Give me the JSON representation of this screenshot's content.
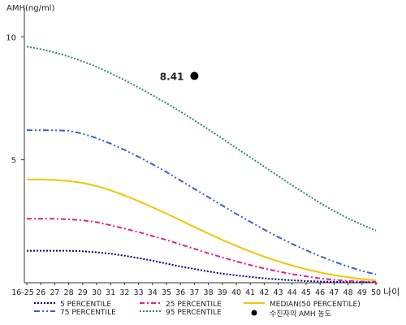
{
  "chart_data": {
    "type": "line",
    "ylabel": "AMH(ng/ml)",
    "xlabel": "나이",
    "ylim": [
      0,
      11
    ],
    "yticks": [
      5,
      10
    ],
    "x": [
      "16-25",
      "26",
      "27",
      "28",
      "29",
      "30",
      "31",
      "32",
      "33",
      "34",
      "35",
      "36",
      "37",
      "38",
      "39",
      "40",
      "41",
      "42",
      "43",
      "44",
      "45",
      "46",
      "47",
      "48",
      "49",
      "50"
    ],
    "series": [
      {
        "name": "5 PERCENTILE",
        "color": "#000080",
        "dash": "2,2",
        "values": [
          1.3,
          1.3,
          1.3,
          1.3,
          1.28,
          1.24,
          1.18,
          1.1,
          1.0,
          0.9,
          0.78,
          0.66,
          0.56,
          0.46,
          0.37,
          0.3,
          0.24,
          0.18,
          0.14,
          0.1,
          0.07,
          0.05,
          0.04,
          0.03,
          0.02,
          0.02
        ]
      },
      {
        "name": "25 PERCENTILE",
        "color": "#e0208a",
        "dash": "6,3,2,3",
        "values": [
          2.6,
          2.6,
          2.6,
          2.58,
          2.54,
          2.46,
          2.34,
          2.2,
          2.06,
          1.9,
          1.74,
          1.56,
          1.38,
          1.2,
          1.03,
          0.87,
          0.72,
          0.58,
          0.46,
          0.35,
          0.26,
          0.18,
          0.12,
          0.08,
          0.05,
          0.04
        ]
      },
      {
        "name": "MEDIAN(50 PERCENTILE)",
        "color": "#f2c500",
        "dash": "",
        "values": [
          4.2,
          4.2,
          4.18,
          4.14,
          4.06,
          3.93,
          3.76,
          3.55,
          3.32,
          3.07,
          2.81,
          2.54,
          2.27,
          2.0,
          1.74,
          1.5,
          1.27,
          1.06,
          0.87,
          0.7,
          0.55,
          0.42,
          0.31,
          0.22,
          0.15,
          0.1
        ]
      },
      {
        "name": "75 PERCENTILE",
        "color": "#3a5fc8",
        "dash": "7,3,2,3,2,3",
        "values": [
          6.2,
          6.2,
          6.2,
          6.18,
          6.06,
          5.88,
          5.66,
          5.4,
          5.12,
          4.82,
          4.5,
          4.16,
          3.82,
          3.48,
          3.14,
          2.8,
          2.48,
          2.16,
          1.86,
          1.58,
          1.32,
          1.08,
          0.86,
          0.66,
          0.48,
          0.34
        ]
      },
      {
        "name": "95 PERCENTILE",
        "color": "#2e8b57",
        "dash": "2,2",
        "values": [
          9.6,
          9.5,
          9.36,
          9.2,
          9.0,
          8.78,
          8.52,
          8.24,
          7.94,
          7.62,
          7.3,
          6.96,
          6.6,
          6.24,
          5.86,
          5.48,
          5.1,
          4.72,
          4.34,
          3.96,
          3.6,
          3.24,
          2.92,
          2.62,
          2.36,
          2.12
        ]
      }
    ],
    "patient": {
      "name": "수진자의 AMH 농도",
      "x": "37",
      "y": 8.41,
      "label": "8.41",
      "color": "#000000"
    },
    "legend_position": "bottom"
  }
}
